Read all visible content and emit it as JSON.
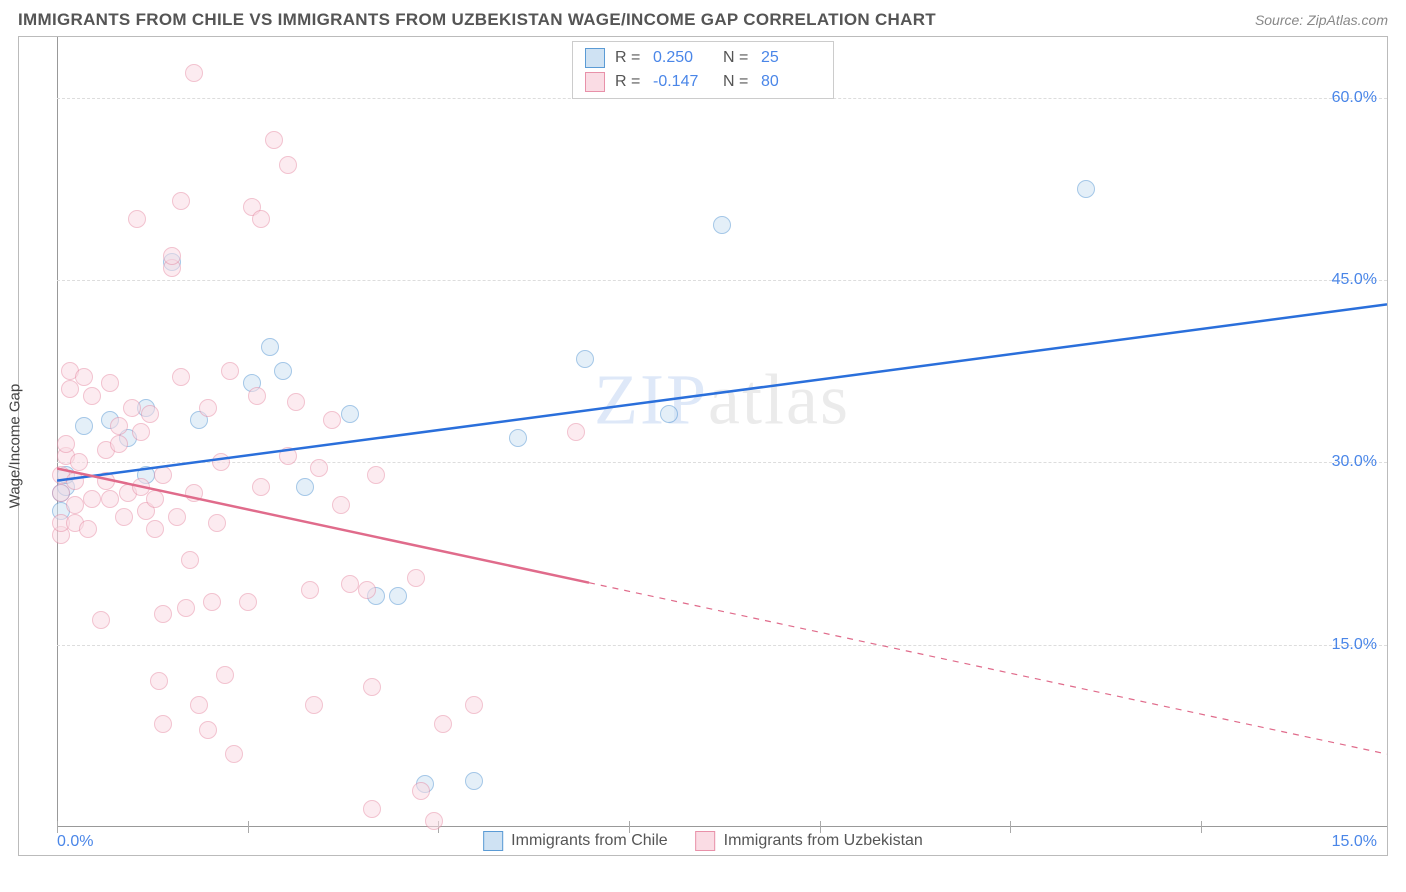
{
  "header": {
    "title": "IMMIGRANTS FROM CHILE VS IMMIGRANTS FROM UZBEKISTAN WAGE/INCOME GAP CORRELATION CHART",
    "source_prefix": "Source: ",
    "source_name": "ZipAtlas.com"
  },
  "chart": {
    "type": "scatter",
    "y_axis_label": "Wage/Income Gap",
    "xlim": [
      0,
      15
    ],
    "ylim": [
      0,
      65
    ],
    "x_tick_positions": [
      0,
      2.15,
      4.3,
      6.45,
      8.6,
      10.75,
      12.9
    ],
    "x_min_label": "0.0%",
    "x_max_label": "15.0%",
    "y_ticks": [
      {
        "value": 15,
        "label": "15.0%"
      },
      {
        "value": 30,
        "label": "30.0%"
      },
      {
        "value": 45,
        "label": "45.0%"
      },
      {
        "value": 60,
        "label": "60.0%"
      }
    ],
    "grid_color": "#dddddd",
    "axis_color": "#999999",
    "background_color": "#ffffff",
    "tick_label_color": "#4a86e8",
    "point_radius": 9,
    "point_opacity": 0.55,
    "series": [
      {
        "name": "Immigrants from Chile",
        "stroke": "#5b9bd5",
        "fill": "#cfe2f3",
        "regression": {
          "r": "0.250",
          "n": "25",
          "line_color": "#2a6fdb",
          "line_width": 2.5,
          "y_at_xmin": 28.5,
          "y_at_xmax": 43.0,
          "solid_until_x": 15
        },
        "points": [
          [
            0.05,
            27.5
          ],
          [
            0.05,
            26.0
          ],
          [
            0.1,
            28.0
          ],
          [
            0.1,
            29.0
          ],
          [
            0.3,
            33.0
          ],
          [
            0.6,
            33.5
          ],
          [
            0.8,
            32.0
          ],
          [
            1.0,
            29.0
          ],
          [
            1.0,
            34.5
          ],
          [
            1.3,
            46.5
          ],
          [
            1.6,
            33.5
          ],
          [
            2.2,
            36.5
          ],
          [
            2.4,
            39.5
          ],
          [
            2.55,
            37.5
          ],
          [
            2.8,
            28.0
          ],
          [
            3.3,
            34.0
          ],
          [
            3.6,
            19.0
          ],
          [
            3.85,
            19.0
          ],
          [
            4.15,
            3.5
          ],
          [
            4.7,
            3.8
          ],
          [
            5.2,
            32.0
          ],
          [
            5.95,
            38.5
          ],
          [
            6.9,
            34.0
          ],
          [
            7.5,
            49.5
          ],
          [
            11.6,
            52.5
          ]
        ]
      },
      {
        "name": "Immigrants from Uzbekistan",
        "stroke": "#e891a9",
        "fill": "#fadce4",
        "regression": {
          "r": "-0.147",
          "n": "80",
          "line_color": "#e06b8b",
          "line_width": 2.5,
          "y_at_xmin": 29.5,
          "y_at_xmax": 6.0,
          "solid_until_x": 6.0
        },
        "points": [
          [
            0.05,
            24.0
          ],
          [
            0.05,
            25.0
          ],
          [
            0.05,
            27.5
          ],
          [
            0.05,
            29.0
          ],
          [
            0.1,
            30.5
          ],
          [
            0.1,
            31.5
          ],
          [
            0.15,
            36.0
          ],
          [
            0.15,
            37.5
          ],
          [
            0.2,
            25.0
          ],
          [
            0.2,
            26.5
          ],
          [
            0.2,
            28.5
          ],
          [
            0.25,
            30.0
          ],
          [
            0.3,
            37.0
          ],
          [
            0.35,
            24.5
          ],
          [
            0.4,
            27.0
          ],
          [
            0.4,
            35.5
          ],
          [
            0.5,
            17.0
          ],
          [
            0.55,
            28.5
          ],
          [
            0.55,
            31.0
          ],
          [
            0.6,
            27.0
          ],
          [
            0.6,
            36.5
          ],
          [
            0.7,
            31.5
          ],
          [
            0.7,
            33.0
          ],
          [
            0.75,
            25.5
          ],
          [
            0.8,
            27.5
          ],
          [
            0.85,
            34.5
          ],
          [
            0.9,
            50.0
          ],
          [
            0.95,
            28.0
          ],
          [
            0.95,
            32.5
          ],
          [
            1.0,
            26.0
          ],
          [
            1.05,
            34.0
          ],
          [
            1.1,
            24.5
          ],
          [
            1.1,
            27.0
          ],
          [
            1.15,
            12.0
          ],
          [
            1.2,
            8.5
          ],
          [
            1.2,
            17.5
          ],
          [
            1.2,
            29.0
          ],
          [
            1.3,
            46.0
          ],
          [
            1.3,
            47.0
          ],
          [
            1.35,
            25.5
          ],
          [
            1.4,
            37.0
          ],
          [
            1.4,
            51.5
          ],
          [
            1.45,
            18.0
          ],
          [
            1.5,
            22.0
          ],
          [
            1.55,
            27.5
          ],
          [
            1.55,
            62.0
          ],
          [
            1.6,
            10.0
          ],
          [
            1.7,
            34.5
          ],
          [
            1.7,
            8.0
          ],
          [
            1.75,
            18.5
          ],
          [
            1.8,
            25.0
          ],
          [
            1.85,
            30.0
          ],
          [
            1.9,
            12.5
          ],
          [
            1.95,
            37.5
          ],
          [
            2.0,
            6.0
          ],
          [
            2.15,
            18.5
          ],
          [
            2.2,
            51.0
          ],
          [
            2.25,
            35.5
          ],
          [
            2.3,
            28.0
          ],
          [
            2.3,
            50.0
          ],
          [
            2.45,
            56.5
          ],
          [
            2.6,
            30.5
          ],
          [
            2.6,
            54.5
          ],
          [
            2.7,
            35.0
          ],
          [
            2.85,
            19.5
          ],
          [
            2.9,
            10.0
          ],
          [
            2.95,
            29.5
          ],
          [
            3.1,
            33.5
          ],
          [
            3.2,
            26.5
          ],
          [
            3.3,
            20.0
          ],
          [
            3.5,
            19.5
          ],
          [
            3.55,
            11.5
          ],
          [
            3.55,
            1.5
          ],
          [
            3.6,
            29.0
          ],
          [
            4.05,
            20.5
          ],
          [
            4.1,
            3.0
          ],
          [
            4.25,
            0.5
          ],
          [
            4.35,
            8.5
          ],
          [
            4.7,
            10.0
          ],
          [
            5.85,
            32.5
          ]
        ]
      }
    ],
    "watermark": {
      "part1": "ZIP",
      "part2": "atlas"
    }
  }
}
